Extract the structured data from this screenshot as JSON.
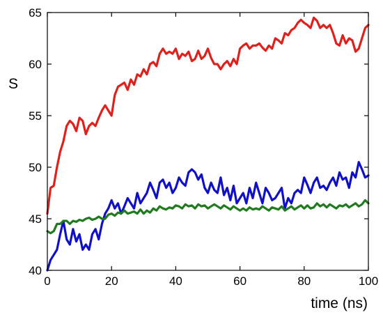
{
  "chart_data": {
    "type": "line",
    "title": "",
    "xlabel": "time (ns)",
    "ylabel": "S",
    "xlim": [
      0,
      100
    ],
    "ylim": [
      40,
      65
    ],
    "xticks": [
      0,
      20,
      40,
      60,
      80,
      100
    ],
    "yticks": [
      40,
      45,
      50,
      55,
      60,
      65
    ],
    "grid": false,
    "legend": "none",
    "series": [
      {
        "color": "#e0201b",
        "x": [
          0,
          1,
          2,
          3,
          4,
          5,
          6,
          7,
          8,
          9,
          10,
          11,
          12,
          13,
          14,
          15,
          16,
          17,
          18,
          19,
          20,
          21,
          22,
          23,
          24,
          25,
          26,
          27,
          28,
          29,
          30,
          31,
          32,
          33,
          34,
          35,
          36,
          37,
          38,
          39,
          40,
          41,
          42,
          43,
          44,
          45,
          46,
          47,
          48,
          49,
          50,
          51,
          52,
          53,
          54,
          55,
          56,
          57,
          58,
          59,
          60,
          61,
          62,
          63,
          64,
          65,
          66,
          67,
          68,
          69,
          70,
          71,
          72,
          73,
          74,
          75,
          76,
          77,
          78,
          79,
          80,
          81,
          82,
          83,
          84,
          85,
          86,
          87,
          88,
          89,
          90,
          91,
          92,
          93,
          94,
          95,
          96,
          97,
          98,
          99,
          100
        ],
        "values": [
          45.5,
          48.0,
          48.2,
          50.0,
          51.5,
          52.5,
          54.0,
          54.5,
          54.2,
          53.5,
          54.8,
          54.5,
          53.2,
          54.0,
          54.3,
          54.0,
          54.8,
          55.5,
          56.0,
          55.5,
          55.0,
          57.0,
          57.8,
          58.0,
          58.2,
          57.5,
          58.5,
          58.0,
          59.0,
          58.8,
          59.5,
          59.0,
          60.0,
          60.2,
          59.8,
          61.0,
          61.5,
          61.0,
          61.2,
          61.0,
          61.5,
          60.5,
          61.0,
          60.8,
          61.2,
          60.3,
          60.5,
          61.3,
          60.5,
          60.8,
          61.5,
          60.6,
          60.0,
          60.0,
          59.5,
          60.0,
          60.3,
          59.8,
          60.5,
          60.0,
          61.5,
          61.8,
          62.0,
          61.5,
          61.8,
          61.8,
          62.0,
          61.6,
          61.3,
          61.8,
          61.5,
          62.5,
          62.3,
          62.0,
          63.0,
          62.8,
          63.3,
          63.5,
          64.0,
          64.3,
          64.0,
          63.8,
          63.5,
          64.5,
          64.2,
          63.5,
          63.8,
          63.5,
          63.8,
          63.0,
          62.0,
          61.8,
          62.8,
          62.0,
          62.5,
          62.3,
          61.2,
          61.5,
          62.5,
          63.5,
          63.8
        ]
      },
      {
        "color": "#1010c8",
        "x": [
          0,
          1,
          2,
          3,
          4,
          5,
          6,
          7,
          8,
          9,
          10,
          11,
          12,
          13,
          14,
          15,
          16,
          17,
          18,
          19,
          20,
          21,
          22,
          23,
          24,
          25,
          26,
          27,
          28,
          29,
          30,
          31,
          32,
          33,
          34,
          35,
          36,
          37,
          38,
          39,
          40,
          41,
          42,
          43,
          44,
          45,
          46,
          47,
          48,
          49,
          50,
          51,
          52,
          53,
          54,
          55,
          56,
          57,
          58,
          59,
          60,
          61,
          62,
          63,
          64,
          65,
          66,
          67,
          68,
          69,
          70,
          71,
          72,
          73,
          74,
          75,
          76,
          77,
          78,
          79,
          80,
          81,
          82,
          83,
          84,
          85,
          86,
          87,
          88,
          89,
          90,
          91,
          92,
          93,
          94,
          95,
          96,
          97,
          98,
          99,
          100
        ],
        "values": [
          40.0,
          41.0,
          41.5,
          42.0,
          43.5,
          44.8,
          43.0,
          42.5,
          44.0,
          42.8,
          43.5,
          42.0,
          42.5,
          42.0,
          43.5,
          44.0,
          43.0,
          44.5,
          45.5,
          46.0,
          46.8,
          46.0,
          46.5,
          45.5,
          46.2,
          47.0,
          46.5,
          46.0,
          47.5,
          46.5,
          47.0,
          47.5,
          48.5,
          47.8,
          47.0,
          48.5,
          48.8,
          48.0,
          48.5,
          47.5,
          48.0,
          49.0,
          48.5,
          48.2,
          49.5,
          49.8,
          49.5,
          48.8,
          49.3,
          48.0,
          47.5,
          48.5,
          47.8,
          47.5,
          49.0,
          47.3,
          48.0,
          46.8,
          48.2,
          46.5,
          47.0,
          47.5,
          46.5,
          48.0,
          47.0,
          48.5,
          47.5,
          46.5,
          48.0,
          47.5,
          46.8,
          47.0,
          47.5,
          48.0,
          46.0,
          47.0,
          46.5,
          47.5,
          47.8,
          47.5,
          49.0,
          48.3,
          47.5,
          48.5,
          49.0,
          48.0,
          48.2,
          47.8,
          48.5,
          49.0,
          48.2,
          49.5,
          48.8,
          49.0,
          48.0,
          49.5,
          49.0,
          50.5,
          49.8,
          49.0,
          49.2
        ]
      },
      {
        "color": "#207a1e",
        "x": [
          0,
          1,
          2,
          3,
          4,
          5,
          6,
          7,
          8,
          9,
          10,
          11,
          12,
          13,
          14,
          15,
          16,
          17,
          18,
          19,
          20,
          21,
          22,
          23,
          24,
          25,
          26,
          27,
          28,
          29,
          30,
          31,
          32,
          33,
          34,
          35,
          36,
          37,
          38,
          39,
          40,
          41,
          42,
          43,
          44,
          45,
          46,
          47,
          48,
          49,
          50,
          51,
          52,
          53,
          54,
          55,
          56,
          57,
          58,
          59,
          60,
          61,
          62,
          63,
          64,
          65,
          66,
          67,
          68,
          69,
          70,
          71,
          72,
          73,
          74,
          75,
          76,
          77,
          78,
          79,
          80,
          81,
          82,
          83,
          84,
          85,
          86,
          87,
          88,
          89,
          90,
          91,
          92,
          93,
          94,
          95,
          96,
          97,
          98,
          99,
          100
        ],
        "values": [
          43.8,
          43.6,
          43.8,
          44.5,
          44.5,
          44.8,
          44.8,
          44.5,
          44.8,
          44.7,
          44.9,
          44.8,
          45.0,
          45.1,
          44.9,
          45.0,
          45.2,
          45.0,
          45.0,
          45.4,
          45.5,
          45.3,
          45.6,
          45.5,
          45.8,
          45.5,
          45.6,
          45.7,
          45.5,
          45.9,
          45.5,
          45.8,
          45.6,
          46.0,
          45.8,
          46.2,
          46.0,
          45.9,
          46.1,
          46.0,
          46.3,
          46.2,
          46.0,
          46.4,
          46.2,
          46.3,
          46.0,
          46.4,
          46.2,
          46.3,
          46.0,
          46.2,
          46.4,
          46.2,
          46.0,
          46.3,
          46.1,
          45.9,
          46.2,
          46.0,
          45.8,
          46.0,
          45.8,
          46.1,
          45.9,
          46.0,
          45.9,
          46.2,
          46.0,
          45.8,
          46.1,
          46.0,
          45.9,
          46.2,
          45.8,
          46.0,
          46.2,
          45.9,
          46.1,
          46.3,
          46.0,
          46.3,
          46.0,
          46.1,
          46.5,
          46.2,
          46.4,
          46.1,
          46.4,
          46.2,
          46.0,
          46.3,
          46.2,
          46.4,
          46.1,
          46.3,
          46.5,
          46.2,
          46.4,
          46.8,
          46.5
        ]
      }
    ]
  }
}
